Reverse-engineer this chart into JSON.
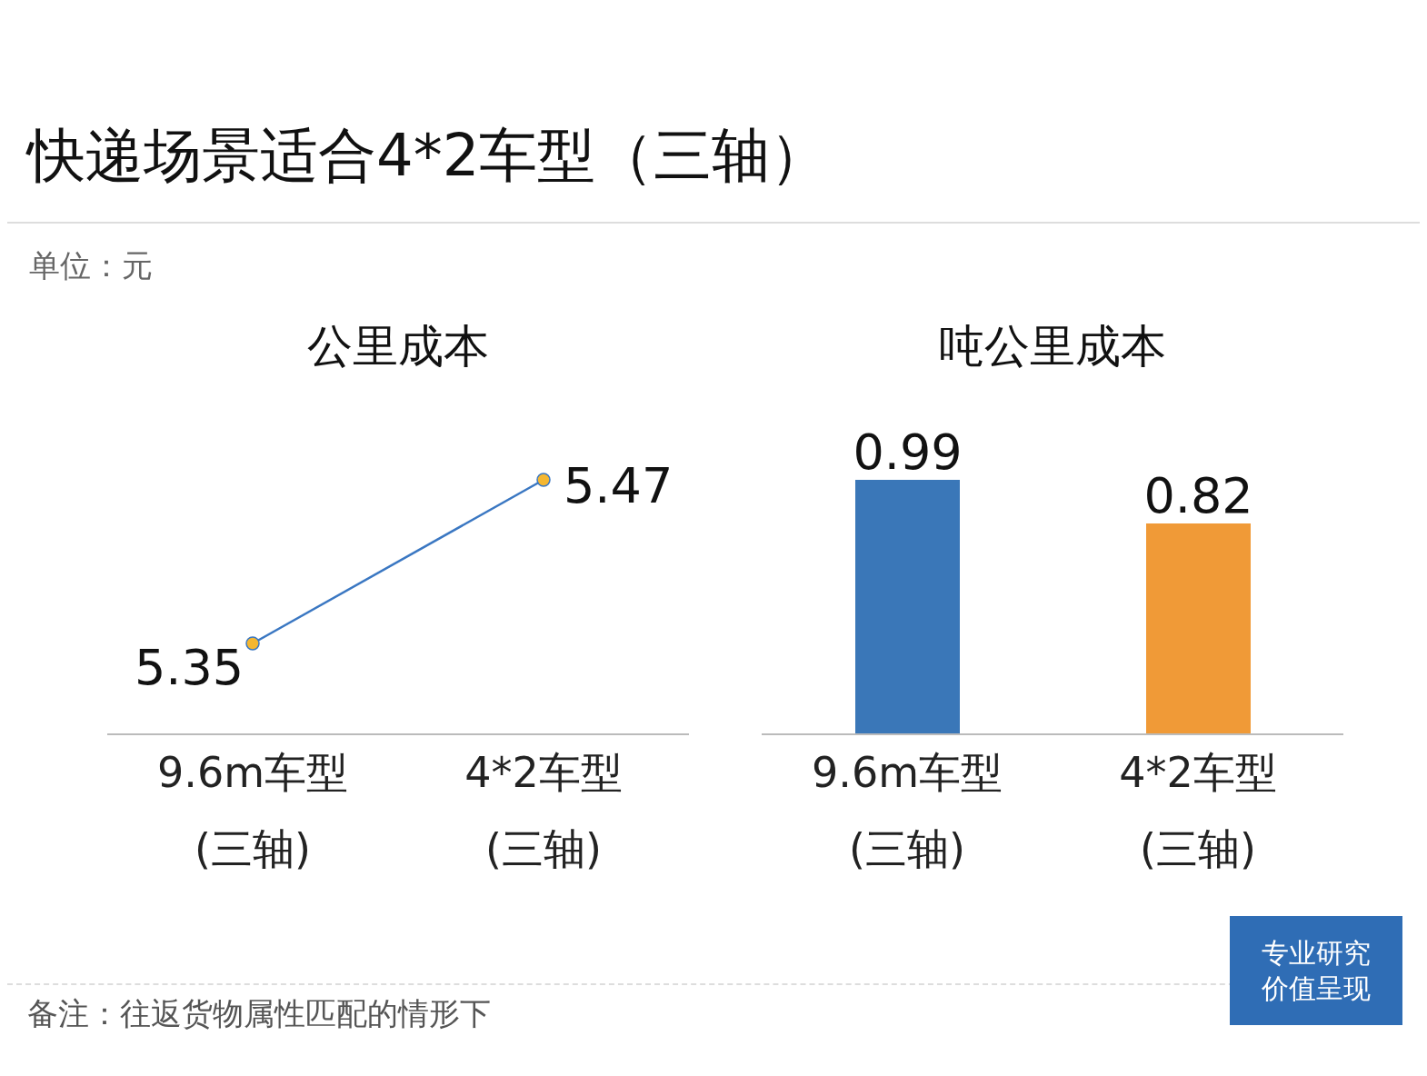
{
  "chart_data": [
    {
      "type": "other",
      "title": "快递场景适合4*2车型（三轴）",
      "subtitle": "单位：元",
      "annotations": [
        "备注：往返货物属性匹配的情形下",
        "专业研究",
        "价值呈现"
      ]
    },
    {
      "type": "line",
      "title": "公里成本",
      "categories": [
        "9.6m车型\n(三轴)",
        "4*2车型\n(三轴)"
      ],
      "values": [
        5.35,
        5.47
      ],
      "color": "#3a77c2",
      "marker": "circle",
      "data_labels": true
    },
    {
      "type": "bar",
      "title": "吨公里成本",
      "categories": [
        "9.6m车型\n(三轴)",
        "4*2车型\n(三轴)"
      ],
      "values": [
        0.99,
        0.82
      ],
      "colors": [
        "#3a77b8",
        "#f09a37"
      ],
      "data_labels": true
    }
  ]
}
